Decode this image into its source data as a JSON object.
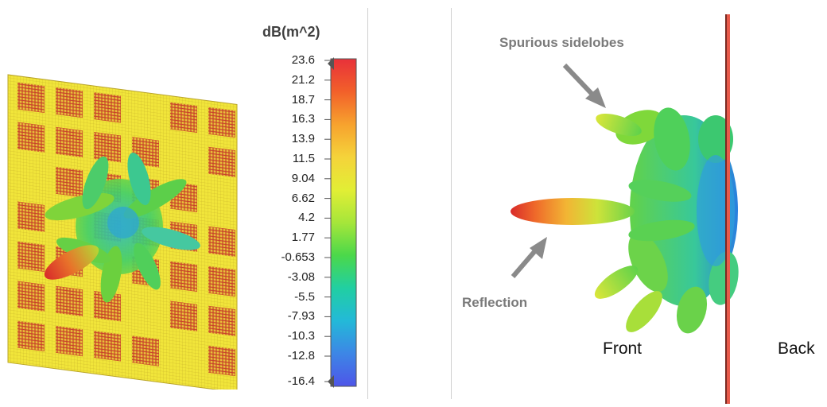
{
  "colorbar": {
    "unit": "dB(m^2)",
    "ticks": [
      "23.6",
      "21.2",
      "18.7",
      "16.3",
      "13.9",
      "11.5",
      "9.04",
      "6.62",
      "4.2",
      "1.77",
      "-0.653",
      "-3.08",
      "-5.5",
      "-7.93",
      "-10.3",
      "-12.8",
      "-16.4"
    ],
    "colors": [
      "#e8313a",
      "#f2602a",
      "#f7a22e",
      "#f5d33a",
      "#e2ee35",
      "#a6e63a",
      "#4bd84a",
      "#21cfa2",
      "#23b9d8",
      "#3d86e6",
      "#4e55e8"
    ]
  },
  "annotations": {
    "spurious": "Spurious sidelobes",
    "reflection": "Reflection",
    "front": "Front",
    "back": "Back"
  },
  "colors": {
    "panel_yellow": "#f4e83a",
    "panel_grid": "#d0482a",
    "arrow": "#8a8a8a"
  }
}
